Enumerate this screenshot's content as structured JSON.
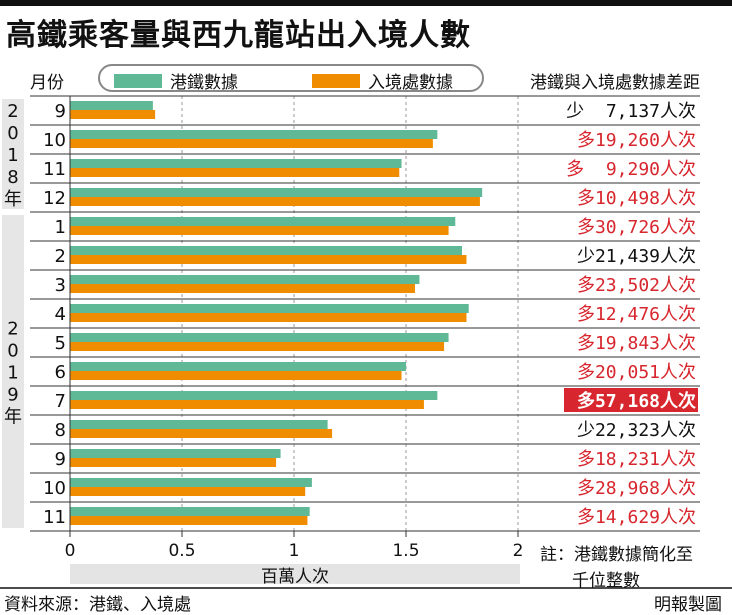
{
  "title": "高鐵乘客量與西九龍站出入境人數",
  "header": {
    "month_label": "月份",
    "diff_label": "港鐵與入境處數據差距"
  },
  "legend": {
    "mtr": "港鐵數據",
    "imm": "入境處數據"
  },
  "colors": {
    "mtr": "#5fb996",
    "imm": "#f08c00",
    "red_text": "#d7262d",
    "highlight_bg": "#d7262d",
    "year_band": "#e6e6e6"
  },
  "years": [
    "2018年",
    "2019年"
  ],
  "year_chars": [
    [
      "2",
      "0",
      "1",
      "8",
      "年"
    ],
    [
      "2",
      "0",
      "1",
      "9",
      "年"
    ]
  ],
  "x_unit": "百萬人次",
  "note_line1": "註：港鐵數據簡化至",
  "note_line2": "千位整數",
  "source": "資料來源：港鐵、入境處",
  "credit": "明報製圖",
  "chart_data": {
    "type": "bar",
    "orientation": "horizontal",
    "xlim": [
      0,
      2
    ],
    "xticks": [
      "0",
      "0.5",
      "1",
      "1.5",
      "2"
    ],
    "xlabel": "百萬人次",
    "categories": [
      "9",
      "10",
      "11",
      "12",
      "1",
      "2",
      "3",
      "4",
      "5",
      "6",
      "7",
      "8",
      "9",
      "10",
      "11"
    ],
    "category_years": [
      "2018",
      "2018",
      "2018",
      "2018",
      "2019",
      "2019",
      "2019",
      "2019",
      "2019",
      "2019",
      "2019",
      "2019",
      "2019",
      "2019",
      "2019"
    ],
    "series": [
      {
        "name": "港鐵數據",
        "values": [
          0.37,
          1.64,
          1.48,
          1.84,
          1.72,
          1.75,
          1.56,
          1.78,
          1.69,
          1.5,
          1.64,
          1.15,
          0.94,
          1.08,
          1.07
        ]
      },
      {
        "name": "入境處數據",
        "values": [
          0.38,
          1.62,
          1.47,
          1.83,
          1.69,
          1.77,
          1.54,
          1.77,
          1.67,
          1.48,
          1.58,
          1.17,
          0.92,
          1.05,
          1.06
        ]
      }
    ],
    "differences": [
      {
        "text": "少  7,137人次",
        "color": "black",
        "highlight": false
      },
      {
        "text": "多19,260人次",
        "color": "red",
        "highlight": false
      },
      {
        "text": "多  9,290人次",
        "color": "red",
        "highlight": false
      },
      {
        "text": "多10,498人次",
        "color": "red",
        "highlight": false
      },
      {
        "text": "多30,726人次",
        "color": "red",
        "highlight": false
      },
      {
        "text": "少21,439人次",
        "color": "black",
        "highlight": false
      },
      {
        "text": "多23,502人次",
        "color": "red",
        "highlight": false
      },
      {
        "text": "多12,476人次",
        "color": "red",
        "highlight": false
      },
      {
        "text": "多19,843人次",
        "color": "red",
        "highlight": false
      },
      {
        "text": "多20,051人次",
        "color": "red",
        "highlight": false
      },
      {
        "text": "多57,168人次",
        "color": "white",
        "highlight": true
      },
      {
        "text": "少22,323人次",
        "color": "black",
        "highlight": false
      },
      {
        "text": "多18,231人次",
        "color": "red",
        "highlight": false
      },
      {
        "text": "多28,968人次",
        "color": "red",
        "highlight": false
      },
      {
        "text": "多14,629人次",
        "color": "red",
        "highlight": false
      }
    ]
  }
}
